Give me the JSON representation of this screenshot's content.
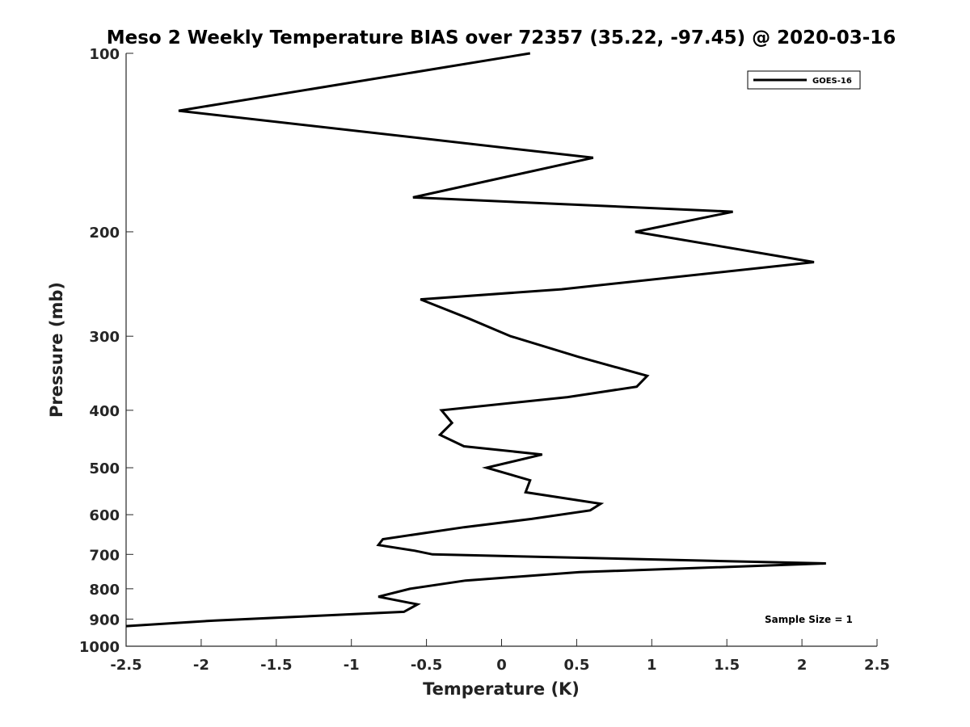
{
  "chart_data": {
    "type": "line",
    "title": "Meso 2 Weekly Temperature BIAS over 72357 (35.22, -97.45) @ 2020-03-16",
    "xlabel": "Temperature (K)",
    "ylabel": "Pressure (mb)",
    "xlim": [
      -2.5,
      2.5
    ],
    "ylim": [
      100,
      1000
    ],
    "y_scale": "log",
    "y_reversed": true,
    "grid": false,
    "legend_position": "top-right",
    "x_ticks": [
      "-2.5",
      "-2",
      "-1.5",
      "-1",
      "-0.5",
      "0",
      "0.5",
      "1",
      "1.5",
      "2",
      "2.5"
    ],
    "y_ticks": [
      "100",
      "200",
      "300",
      "400",
      "500",
      "600",
      "700",
      "800",
      "900",
      "1000"
    ],
    "annotation": "Sample Size = 1",
    "line_color": "#000000",
    "series": [
      {
        "name": "GOES-16",
        "points": [
          [
            0.19,
            100
          ],
          [
            -2.15,
            125
          ],
          [
            0.61,
            150
          ],
          [
            -0.59,
            175
          ],
          [
            1.54,
            185
          ],
          [
            0.89,
            200
          ],
          [
            2.08,
            225
          ],
          [
            0.4,
            250
          ],
          [
            -0.54,
            260
          ],
          [
            -0.22,
            280
          ],
          [
            0.06,
            300
          ],
          [
            0.51,
            325
          ],
          [
            0.97,
            350
          ],
          [
            0.9,
            365
          ],
          [
            0.44,
            380
          ],
          [
            -0.4,
            400
          ],
          [
            -0.33,
            420
          ],
          [
            -0.41,
            440
          ],
          [
            -0.25,
            460
          ],
          [
            0.27,
            475
          ],
          [
            -0.1,
            500
          ],
          [
            0.19,
            525
          ],
          [
            0.16,
            550
          ],
          [
            0.66,
            575
          ],
          [
            0.59,
            590
          ],
          [
            0.2,
            610
          ],
          [
            -0.25,
            630
          ],
          [
            -0.79,
            660
          ],
          [
            -0.82,
            675
          ],
          [
            -0.58,
            690
          ],
          [
            -0.46,
            700
          ],
          [
            2.16,
            725
          ],
          [
            0.52,
            750
          ],
          [
            -0.24,
            775
          ],
          [
            -0.61,
            800
          ],
          [
            -0.82,
            825
          ],
          [
            -0.56,
            850
          ],
          [
            -0.65,
            875
          ],
          [
            -1.91,
            905
          ],
          [
            -2.5,
            925
          ]
        ]
      }
    ]
  }
}
